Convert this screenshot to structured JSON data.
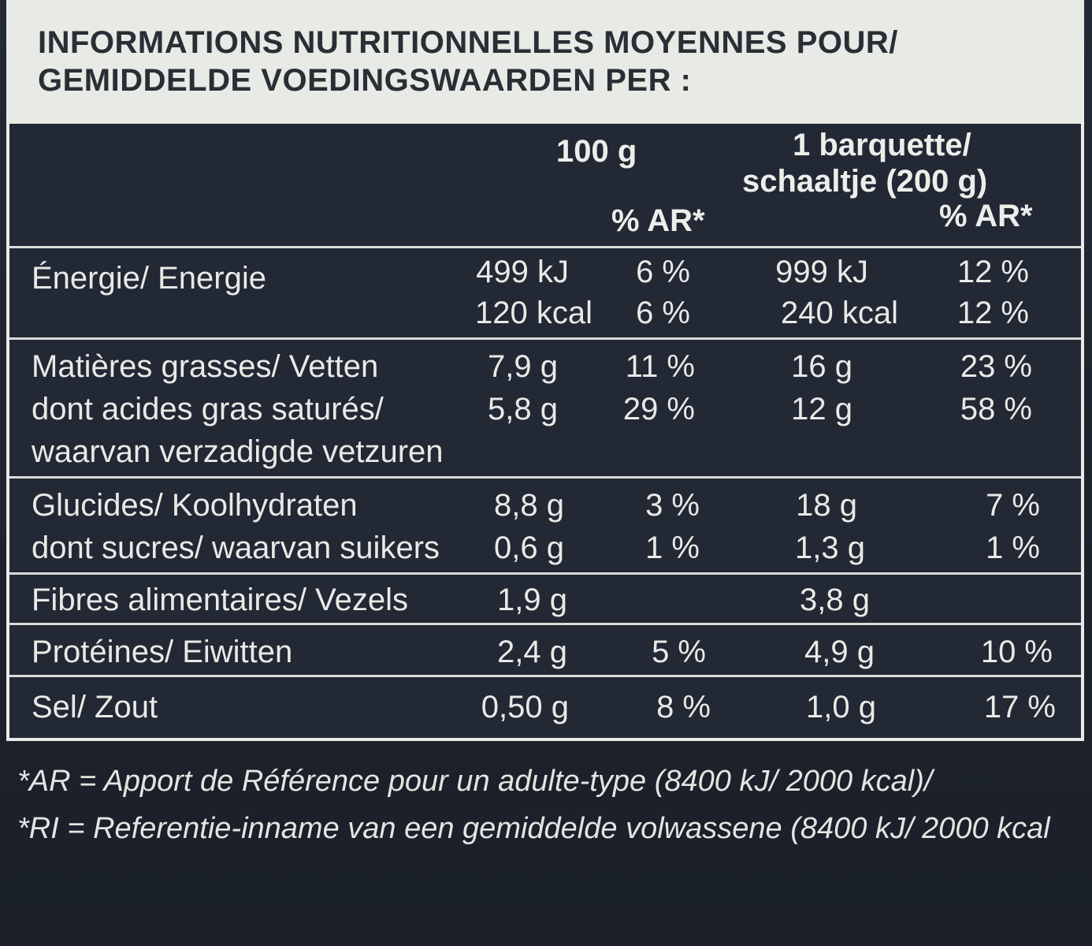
{
  "header": {
    "line1": "INFORMATIONS NUTRITIONNELLES MOYENNES POUR/",
    "line2": "GEMIDDELDE VOEDINGSWAARDEN PER :"
  },
  "columns": {
    "per100": "100 g",
    "perServing_line1": "1 barquette/",
    "perServing_line2": "schaaltje (200 g)",
    "ar1": "% AR*",
    "ar2": "% AR*"
  },
  "rows": [
    {
      "label": "Énergie/ Energie",
      "v100": "499 kJ",
      "p100": "6 %",
      "vs": "999 kJ",
      "ps": "12 %"
    },
    {
      "label": "",
      "v100": "120 kcal",
      "p100": "6 %",
      "vs": "240 kcal",
      "ps": "12 %"
    },
    {
      "label": "Matières grasses/ Vetten",
      "v100": "7,9 g",
      "p100": "11 %",
      "vs": "16 g",
      "ps": "23 %"
    },
    {
      "label": "dont acides gras saturés/",
      "v100": "5,8 g",
      "p100": "29 %",
      "vs": "12 g",
      "ps": "58 %"
    },
    {
      "label": "waarvan verzadigde vetzuren",
      "v100": "",
      "p100": "",
      "vs": "",
      "ps": ""
    },
    {
      "label": "Glucides/ Koolhydraten",
      "v100": "8,8 g",
      "p100": "3 %",
      "vs": "18 g",
      "ps": "7 %"
    },
    {
      "label": "dont sucres/ waarvan suikers",
      "v100": "0,6 g",
      "p100": "1 %",
      "vs": "1,3 g",
      "ps": "1 %"
    },
    {
      "label": "Fibres alimentaires/ Vezels",
      "v100": "1,9 g",
      "p100": "",
      "vs": "3,8 g",
      "ps": ""
    },
    {
      "label": "Protéines/ Eiwitten",
      "v100": "2,4 g",
      "p100": "5 %",
      "vs": "4,9 g",
      "ps": "10 %"
    },
    {
      "label": "Sel/ Zout",
      "v100": "0,50 g",
      "p100": "8 %",
      "vs": "1,0 g",
      "ps": "17 %"
    }
  ],
  "footnotes": {
    "fr": "*AR = Apport de Référence pour un adulte-type (8400 kJ/ 2000 kcal)/",
    "nl": "*RI = Referentie-inname van een gemiddelde volwassene (8400 kJ/ 2000 kcal"
  }
}
